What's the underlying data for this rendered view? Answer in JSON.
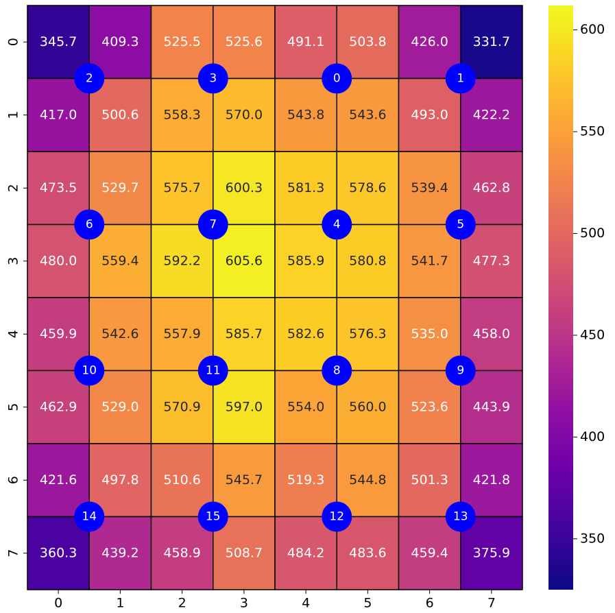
{
  "chart_data": {
    "type": "heatmap",
    "x_categories": [
      "0",
      "1",
      "2",
      "3",
      "4",
      "5",
      "6",
      "7"
    ],
    "y_categories": [
      "0",
      "1",
      "2",
      "3",
      "4",
      "5",
      "6",
      "7"
    ],
    "values": [
      [
        345.7,
        409.3,
        525.5,
        525.6,
        491.1,
        503.8,
        426.0,
        331.7
      ],
      [
        417.0,
        500.6,
        558.3,
        570.0,
        543.8,
        543.6,
        493.0,
        422.2
      ],
      [
        473.5,
        529.7,
        575.7,
        600.3,
        581.3,
        578.6,
        539.4,
        462.8
      ],
      [
        480.0,
        559.4,
        592.2,
        605.6,
        585.9,
        580.8,
        541.7,
        477.3
      ],
      [
        459.9,
        542.6,
        557.9,
        585.7,
        582.6,
        576.3,
        535.0,
        458.0
      ],
      [
        462.9,
        529.0,
        570.9,
        597.0,
        554.0,
        560.0,
        523.6,
        443.9
      ],
      [
        421.6,
        497.8,
        510.6,
        545.7,
        519.3,
        544.8,
        501.3,
        421.8
      ],
      [
        360.3,
        439.2,
        458.9,
        508.7,
        484.2,
        483.6,
        459.4,
        375.9
      ]
    ],
    "value_labels": [
      [
        "345.7",
        "409.3",
        "525.5",
        "525.6",
        "491.1",
        "503.8",
        "426.0",
        "331.7"
      ],
      [
        "417.0",
        "500.6",
        "558.3",
        "570.0",
        "543.8",
        "543.6",
        "493.0",
        "422.2"
      ],
      [
        "473.5",
        "529.7",
        "575.7",
        "600.3",
        "581.3",
        "578.6",
        "539.4",
        "462.8"
      ],
      [
        "480.0",
        "559.4",
        "592.2",
        "605.6",
        "585.9",
        "580.8",
        "541.7",
        "477.3"
      ],
      [
        "459.9",
        "542.6",
        "557.9",
        "585.7",
        "582.6",
        "576.3",
        "535.0",
        "458.0"
      ],
      [
        "462.9",
        "529.0",
        "570.9",
        "597.0",
        "554.0",
        "560.0",
        "523.6",
        "443.9"
      ],
      [
        "421.6",
        "497.8",
        "510.6",
        "545.7",
        "519.3",
        "544.8",
        "501.3",
        "421.8"
      ],
      [
        "360.3",
        "439.2",
        "458.9",
        "508.7",
        "484.2",
        "483.6",
        "459.4",
        "375.9"
      ]
    ],
    "colormap": "plasma",
    "colorbar_lim": [
      325,
      612
    ],
    "colorbar_ticks": [
      350,
      400,
      450,
      500,
      550,
      600
    ],
    "markers": {
      "color": "#0000ff",
      "labels": [
        "2",
        "3",
        "0",
        "1",
        "6",
        "7",
        "4",
        "5",
        "10",
        "11",
        "8",
        "9",
        "14",
        "15",
        "12",
        "13"
      ],
      "x": [
        1,
        3,
        5,
        7,
        1,
        3,
        5,
        7,
        1,
        3,
        5,
        7,
        1,
        3,
        5,
        7
      ],
      "y": [
        1,
        1,
        1,
        1,
        3,
        3,
        3,
        3,
        5,
        5,
        5,
        5,
        7,
        7,
        7,
        7
      ]
    }
  }
}
